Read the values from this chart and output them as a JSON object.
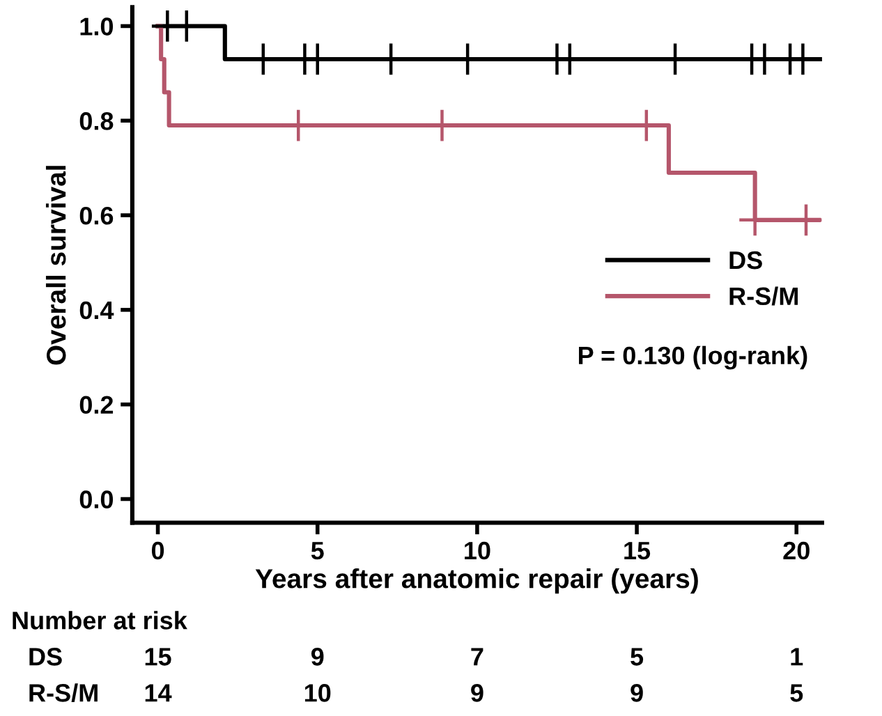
{
  "chart_data": {
    "type": "step",
    "xlabel": "Years after anatomic repair (years)",
    "ylabel": "Overall survival",
    "xlim": [
      -0.8,
      20.8
    ],
    "xticks": [
      0,
      5,
      10,
      15,
      20
    ],
    "ylim": [
      -0.05,
      1.04
    ],
    "yticks": [
      {
        "value": 0,
        "label": "0.0"
      },
      0.2,
      0.4,
      0.6,
      0.8,
      {
        "value": 1,
        "label": "1.0"
      }
    ],
    "grid": false,
    "legend": "right",
    "line_style": "solid",
    "series": [
      {
        "name": "DS",
        "color": "#000000",
        "x": [
          0,
          2.1,
          20.8
        ],
        "values": [
          1.0,
          0.93,
          0.93
        ]
      },
      {
        "name": "R-S/M",
        "color": "#b5566b",
        "x": [
          0,
          0.1,
          0.2,
          0.35,
          16.0,
          18.7,
          20.7
        ],
        "values": [
          1.0,
          0.93,
          0.86,
          0.79,
          0.69,
          0.59,
          0.59
        ]
      },
      {
        "color": "#000000",
        "type": "scatter",
        "marker": "cross",
        "x": [
          0.3,
          0.9,
          3.3,
          4.6,
          5.0,
          7.3,
          9.7,
          12.5,
          12.9,
          16.2,
          18.6,
          19.0,
          19.8,
          20.2
        ],
        "values": [
          1.0,
          1.0,
          0.93,
          0.93,
          0.93,
          0.93,
          0.93,
          0.93,
          0.93,
          0.93,
          0.93,
          0.93,
          0.93,
          0.93
        ]
      },
      {
        "color": "#b5566b",
        "type": "scatter",
        "marker": "cross",
        "x": [
          4.4,
          8.9,
          15.3,
          18.7,
          20.3
        ],
        "values": [
          0.79,
          0.79,
          0.79,
          0.59,
          0.59
        ]
      }
    ],
    "annotations": [
      "P = 0.130 (log-rank)",
      "Number at risk",
      "DS",
      "15",
      "9",
      "7",
      "5",
      "1",
      "R-S/M",
      "14",
      "10",
      "9",
      "9",
      "5"
    ]
  }
}
